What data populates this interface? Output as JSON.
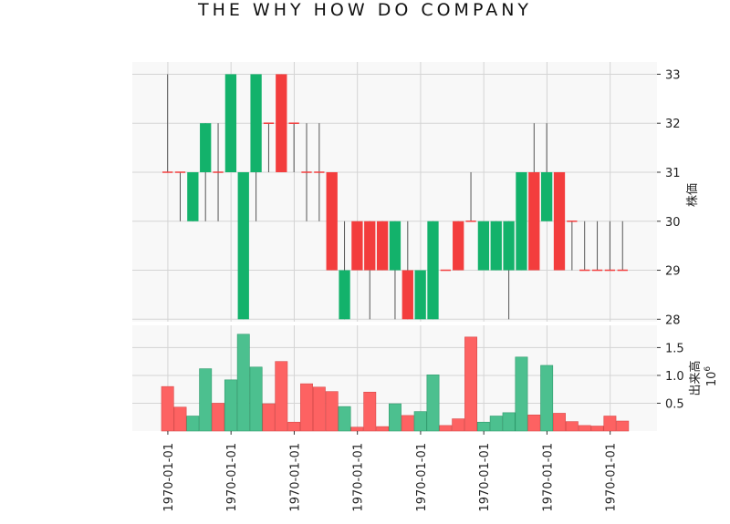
{
  "chart_data": {
    "type": "candlestick",
    "title": "THE WHY HOW DO COMPANY",
    "price_label": "株価",
    "volume_label": "出来高",
    "volume_unit_base": "10",
    "volume_unit_exp": "6",
    "price_ylim": [
      27.95,
      33.25
    ],
    "price_ticks": [
      "28",
      "29",
      "30",
      "31",
      "32",
      "33"
    ],
    "volume_ylim": [
      0,
      1.9
    ],
    "volume_ticks": [
      "0.5",
      "1.0",
      "1.5"
    ],
    "x_tick_labels": [
      "1970-01-01",
      "1970-01-01",
      "1970-01-01",
      "1970-01-01",
      "1970-01-01",
      "1970-01-01",
      "1970-01-01",
      "1970-01-01"
    ],
    "x_tick_positions": [
      0.5,
      5.5,
      10.5,
      15.5,
      20.5,
      25.5,
      30.5,
      35.5
    ],
    "colors": {
      "up": "#13b26b",
      "down": "#f33d3d",
      "wick": "#555555",
      "grid": "#d4d4d4",
      "panel": "#f8f8f8"
    },
    "series": [
      {
        "o": 31,
        "h": 33,
        "l": 31,
        "c": 31,
        "v": 0.8
      },
      {
        "o": 31,
        "h": 31,
        "l": 30,
        "c": 31,
        "v": 0.43
      },
      {
        "o": 30,
        "h": 31,
        "l": 30,
        "c": 31,
        "v": 0.27
      },
      {
        "o": 31,
        "h": 32,
        "l": 30,
        "c": 32,
        "v": 1.12
      },
      {
        "o": 31,
        "h": 32,
        "l": 30,
        "c": 31,
        "v": 0.5
      },
      {
        "o": 31,
        "h": 33,
        "l": 31,
        "c": 33,
        "v": 0.92
      },
      {
        "o": 28,
        "h": 31,
        "l": 28,
        "c": 31,
        "v": 1.74
      },
      {
        "o": 31,
        "h": 33,
        "l": 30,
        "c": 33,
        "v": 1.15
      },
      {
        "o": 32,
        "h": 32,
        "l": 31,
        "c": 32,
        "v": 0.49
      },
      {
        "o": 33,
        "h": 33,
        "l": 31,
        "c": 31,
        "v": 1.25
      },
      {
        "o": 32,
        "h": 32,
        "l": 31,
        "c": 32,
        "v": 0.16
      },
      {
        "o": 31,
        "h": 32,
        "l": 30,
        "c": 31,
        "v": 0.85
      },
      {
        "o": 31,
        "h": 32,
        "l": 30,
        "c": 31,
        "v": 0.79
      },
      {
        "o": 31,
        "h": 31,
        "l": 29,
        "c": 29,
        "v": 0.71
      },
      {
        "o": 28,
        "h": 30,
        "l": 28,
        "c": 29,
        "v": 0.44
      },
      {
        "o": 30,
        "h": 30,
        "l": 29,
        "c": 29,
        "v": 0.07
      },
      {
        "o": 30,
        "h": 30,
        "l": 28,
        "c": 29,
        "v": 0.7
      },
      {
        "o": 30,
        "h": 30,
        "l": 29,
        "c": 29,
        "v": 0.08
      },
      {
        "o": 29,
        "h": 30,
        "l": 28,
        "c": 30,
        "v": 0.49
      },
      {
        "o": 29,
        "h": 30,
        "l": 28,
        "c": 28,
        "v": 0.28
      },
      {
        "o": 28,
        "h": 29,
        "l": 28,
        "c": 29,
        "v": 0.35
      },
      {
        "o": 28,
        "h": 30,
        "l": 28,
        "c": 30,
        "v": 1.01
      },
      {
        "o": 29,
        "h": 29,
        "l": 29,
        "c": 29,
        "v": 0.1
      },
      {
        "o": 30,
        "h": 30,
        "l": 29,
        "c": 29,
        "v": 0.22
      },
      {
        "o": 30,
        "h": 31,
        "l": 30,
        "c": 30,
        "v": 1.69
      },
      {
        "o": 29,
        "h": 30,
        "l": 29,
        "c": 30,
        "v": 0.16
      },
      {
        "o": 29,
        "h": 30,
        "l": 29,
        "c": 30,
        "v": 0.27
      },
      {
        "o": 29,
        "h": 30,
        "l": 28,
        "c": 30,
        "v": 0.33
      },
      {
        "o": 29,
        "h": 31,
        "l": 29,
        "c": 31,
        "v": 1.33
      },
      {
        "o": 31,
        "h": 32,
        "l": 29,
        "c": 29,
        "v": 0.29
      },
      {
        "o": 30,
        "h": 32,
        "l": 30,
        "c": 31,
        "v": 1.18
      },
      {
        "o": 31,
        "h": 31,
        "l": 29,
        "c": 29,
        "v": 0.32
      },
      {
        "o": 30,
        "h": 30,
        "l": 29,
        "c": 30,
        "v": 0.17
      },
      {
        "o": 29,
        "h": 30,
        "l": 29,
        "c": 29,
        "v": 0.1
      },
      {
        "o": 29,
        "h": 30,
        "l": 29,
        "c": 29,
        "v": 0.09
      },
      {
        "o": 29,
        "h": 30,
        "l": 29,
        "c": 29,
        "v": 0.27
      },
      {
        "o": 29,
        "h": 30,
        "l": 29,
        "c": 29,
        "v": 0.18
      }
    ]
  }
}
